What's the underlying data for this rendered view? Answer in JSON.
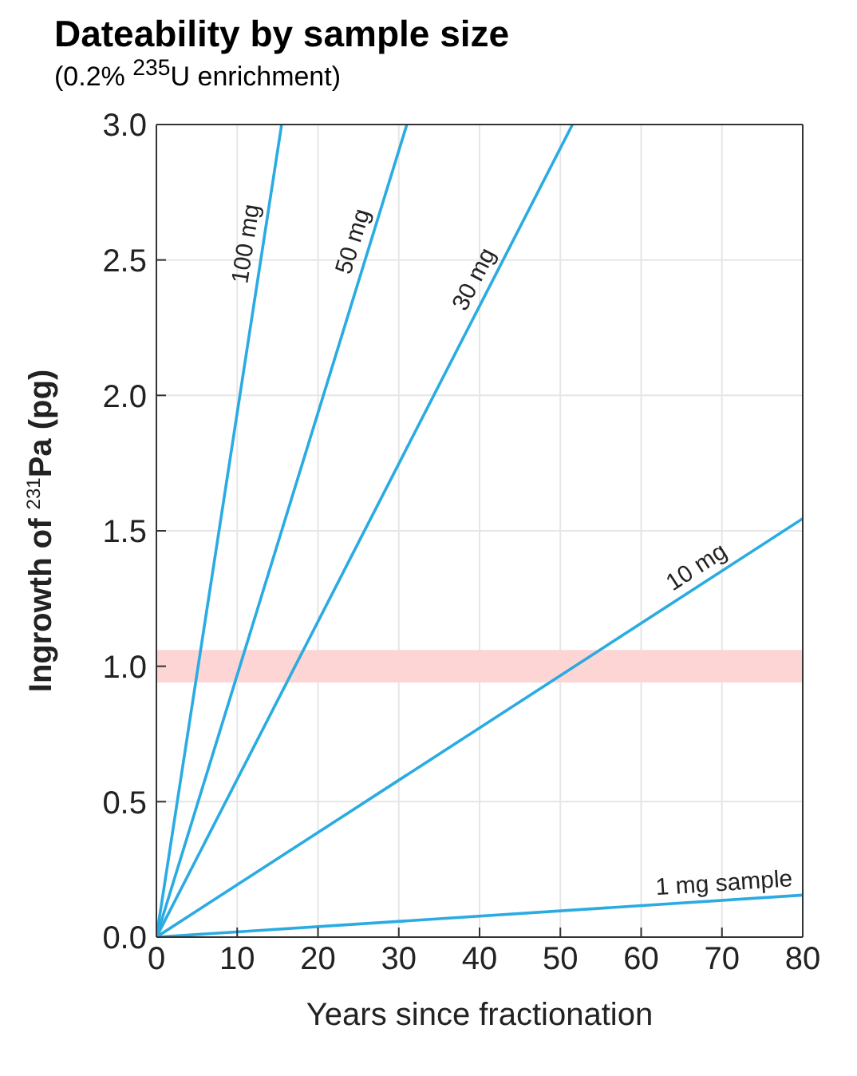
{
  "chart_data": {
    "type": "line",
    "title": "Dateability by sample size",
    "subtitle": "(0.2% $^{235}$U enrichment)",
    "xlabel": "Years since fractionation",
    "ylabel": "Ingrowth of $^{231}$Pa (pg)",
    "series": [
      {
        "name": "100 mg",
        "color": "#2aabe2",
        "x": [
          0,
          15.5
        ],
        "values": [
          0,
          3.0
        ]
      },
      {
        "name": "50 mg",
        "color": "#2aabe2",
        "x": [
          0,
          31
        ],
        "values": [
          0,
          3.0
        ]
      },
      {
        "name": "30 mg",
        "color": "#2aabe2",
        "x": [
          0,
          51.5
        ],
        "values": [
          0,
          3.0
        ]
      },
      {
        "name": "10 mg",
        "color": "#2aabe2",
        "x": [
          0,
          80
        ],
        "values": [
          0,
          1.545
        ]
      },
      {
        "name": "1 mg sample",
        "color": "#2aabe2",
        "x": [
          0,
          80
        ],
        "values": [
          0,
          0.155
        ]
      }
    ],
    "bands": [
      {
        "axis": "y",
        "from": 0.94,
        "to": 1.06,
        "color": "#fdd5d5"
      }
    ],
    "xlim": [
      0,
      80
    ],
    "xticks": [
      0,
      10,
      20,
      30,
      40,
      50,
      60,
      70,
      80
    ],
    "ylim": [
      0,
      3
    ],
    "yticks": [
      {
        "value": 0,
        "label": "0.0"
      },
      0.5,
      {
        "value": 1,
        "label": "1.0"
      },
      1.5,
      {
        "value": 2,
        "label": "2.0"
      },
      2.5,
      {
        "value": 3,
        "label": "3.0"
      }
    ],
    "grid": true
  }
}
